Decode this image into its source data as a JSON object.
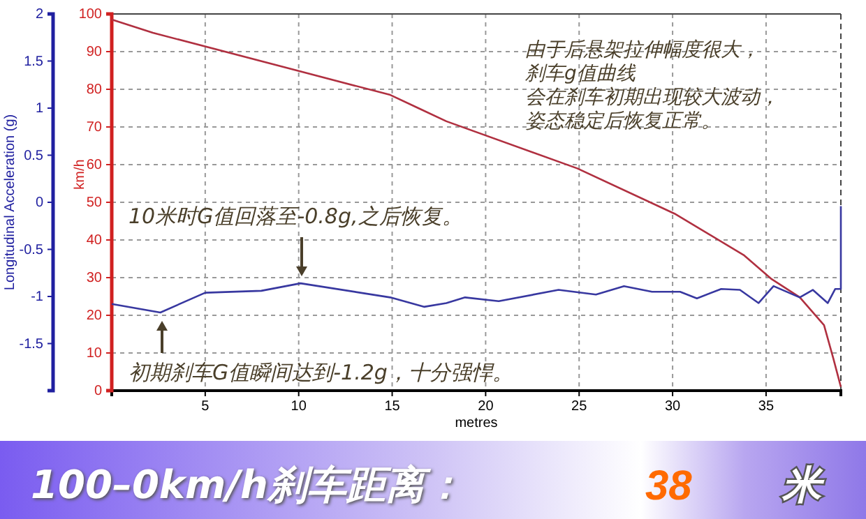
{
  "chart_data": {
    "type": "line",
    "title": "100–0km/h刹车距离：",
    "xlabel": "metres",
    "ylabel": "km/h",
    "y2label": "Longitudinal Acceleration (g)",
    "xlim": [
      0,
      39
    ],
    "xticks": [
      5,
      10,
      15,
      20,
      25,
      30,
      35
    ],
    "ylim": [
      0,
      100
    ],
    "yticks": [
      0,
      10,
      20,
      30,
      40,
      50,
      60,
      70,
      80,
      90,
      100
    ],
    "y2lim": [
      -2,
      2
    ],
    "y2ticks": [
      -1.5,
      -1,
      -0.5,
      0,
      0.5,
      1,
      1.5,
      2
    ],
    "grid": true,
    "line_style": "solid",
    "series": [
      {
        "color": "#b03040",
        "x": [
          0,
          2.2,
          9.9,
          14.9,
          16.4,
          17.9,
          24.9,
          30.1,
          33.8,
          35.3,
          36.8,
          38.1,
          38.6,
          39
        ],
        "values": [
          98.5,
          95,
          85,
          78.5,
          75,
          71.5,
          59,
          47,
          36,
          29.6,
          24.8,
          17.4,
          8.5,
          1
        ]
      },
      {
        "color": "#3838a0",
        "axis": "y2",
        "x": [
          0,
          2.6,
          5,
          8,
          10.1,
          14.9,
          16.7,
          17.9,
          18.9,
          20.7,
          23.9,
          25.9,
          27.4,
          28.9,
          30.4,
          31.3,
          32.6,
          33.6,
          34.6,
          35.4,
          36.8,
          37.5,
          38.3,
          38.7,
          39,
          39
        ],
        "values": [
          -1.08,
          -1.17,
          -0.96,
          -0.94,
          -0.86,
          -1.01,
          -1.11,
          -1.07,
          -1.01,
          -1.05,
          -0.93,
          -0.98,
          -0.89,
          -0.95,
          -0.95,
          -1.02,
          -0.92,
          -0.93,
          -1.07,
          -0.89,
          -1.01,
          -0.93,
          -1.07,
          -0.92,
          -0.92,
          -0.04
        ]
      }
    ],
    "annotations": [
      "由于后悬架拉伸幅度很大，",
      "刹车g值曲线",
      "会在刹车初期出现较大波动，",
      "姿态稳定后恢复正常。",
      "10米时G值回落至-0.8g,之后恢复。",
      "初期刹车G值瞬间达到-1.2g，十分强悍。",
      "38",
      "米"
    ]
  }
}
